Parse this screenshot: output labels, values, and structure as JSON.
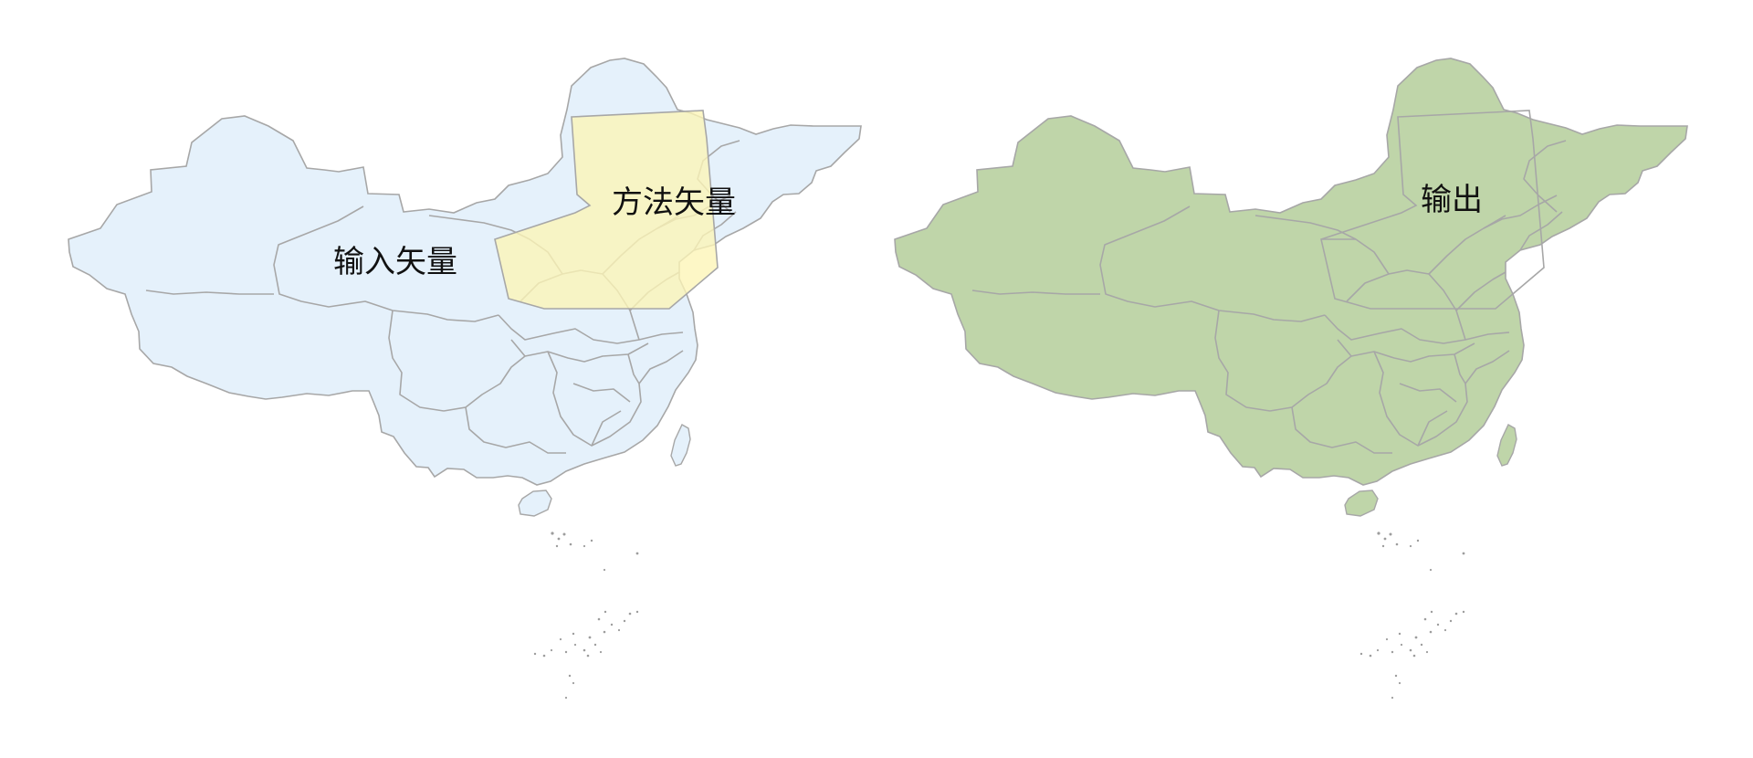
{
  "maps": [
    {
      "labels": {
        "input": "输入矢量",
        "method": "方法矢量"
      },
      "colors": {
        "land": "#e5f1fb",
        "method_fill": "#fbf5b8",
        "border": "#a7a7a7"
      }
    },
    {
      "labels": {
        "output": "输出"
      },
      "colors": {
        "land": "#bfd5a9",
        "border": "#a7a7a7"
      }
    }
  ]
}
